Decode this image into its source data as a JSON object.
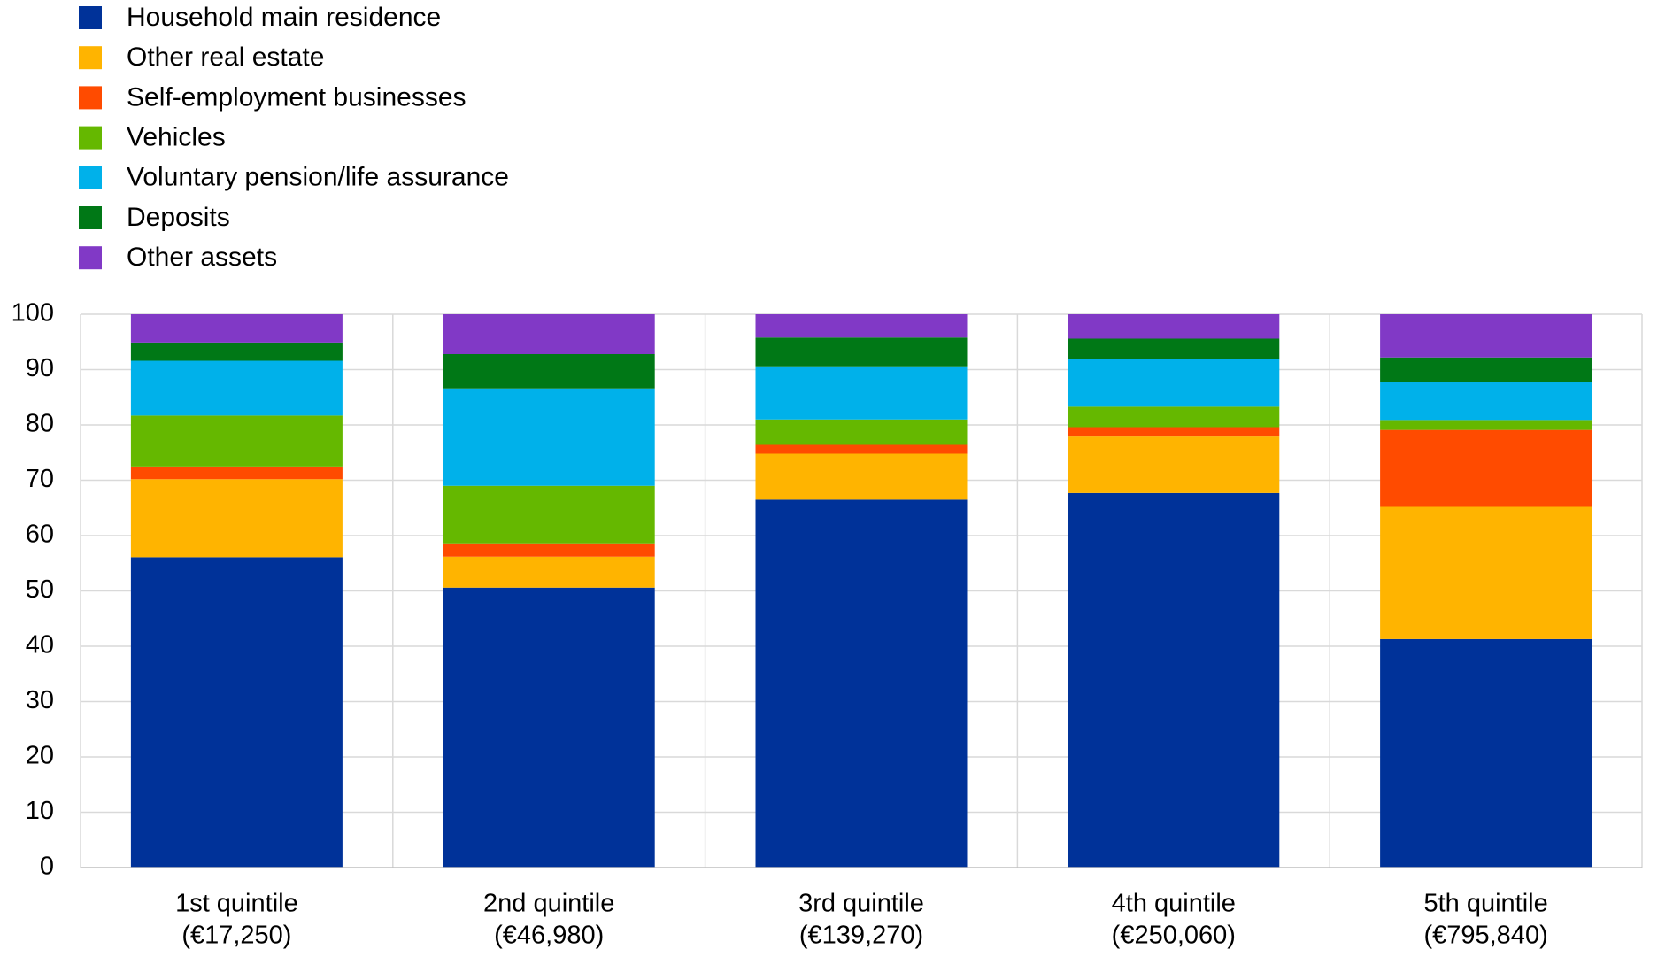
{
  "chart_data": {
    "type": "bar",
    "stacked": true,
    "categories": [
      [
        "1st quintile",
        "(€17,250)"
      ],
      [
        "2nd quintile",
        "(€46,980)"
      ],
      [
        "3rd quintile",
        "(€139,270)"
      ],
      [
        "4th quintile",
        "(€250,060)"
      ],
      [
        "5th quintile",
        "(€795,840)"
      ]
    ],
    "ylim": [
      0,
      100
    ],
    "yticks": [
      0,
      10,
      20,
      30,
      40,
      50,
      60,
      70,
      80,
      90,
      100
    ],
    "grid": true,
    "legend_position": "top-left",
    "series": [
      {
        "name": "Household main residence",
        "color": "#003299",
        "values": [
          56.1,
          50.6,
          66.5,
          67.7,
          41.3
        ]
      },
      {
        "name": "Other real estate",
        "color": "#FFB400",
        "values": [
          14.1,
          5.6,
          8.3,
          10.2,
          23.9
        ]
      },
      {
        "name": "Self-employment businesses",
        "color": "#FF4B00",
        "values": [
          2.3,
          2.4,
          1.6,
          1.7,
          13.9
        ]
      },
      {
        "name": "Vehicles",
        "color": "#65B800",
        "values": [
          9.2,
          10.4,
          4.6,
          3.7,
          1.8
        ]
      },
      {
        "name": "Voluntary pension/life assurance",
        "color": "#00B1EA",
        "values": [
          9.9,
          17.6,
          9.6,
          8.6,
          6.8
        ]
      },
      {
        "name": "Deposits",
        "color": "#007816",
        "values": [
          3.3,
          6.2,
          5.2,
          3.7,
          4.5
        ]
      },
      {
        "name": "Other assets",
        "color": "#8139C6",
        "values": [
          5.1,
          7.2,
          4.2,
          4.4,
          7.8
        ]
      }
    ]
  }
}
